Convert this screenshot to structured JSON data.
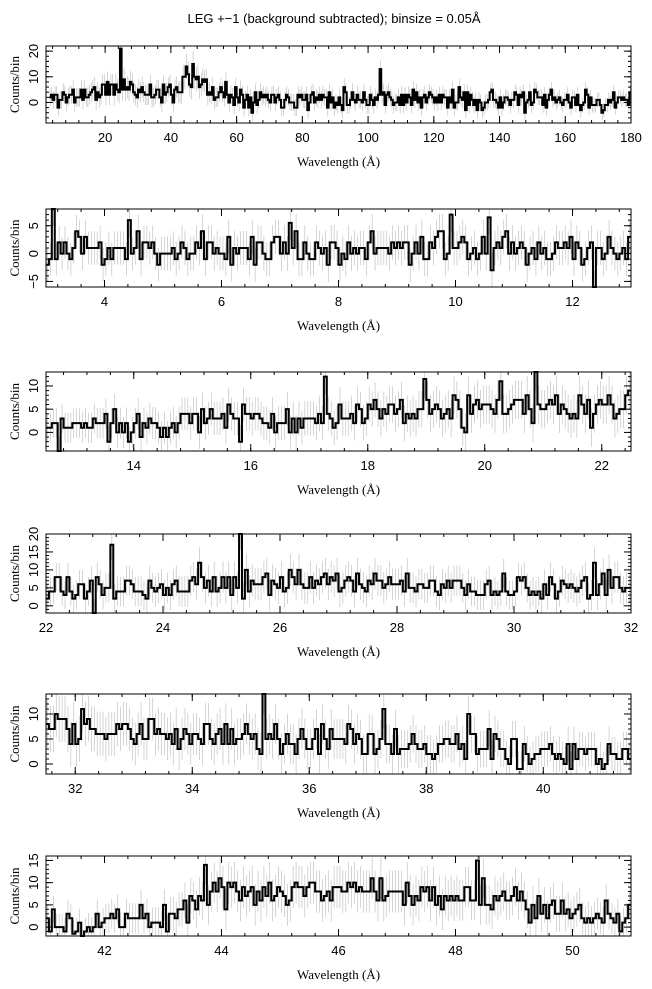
{
  "figure": {
    "title": "LEG +−1 (background subtracted); binsize = 0.05Å",
    "colors": {
      "line": "#000000",
      "error_bars": "#b8b8b8",
      "frame": "#000000"
    }
  },
  "chart_data": [
    {
      "type": "line",
      "style": "step-histogram-with-error-bars",
      "xlabel": "Wavelength (Å)",
      "ylabel": "Counts/bin",
      "xlim": [
        2,
        180
      ],
      "ylim": [
        -8,
        22
      ],
      "xticks": [
        20,
        40,
        60,
        80,
        100,
        120,
        140,
        160,
        180
      ],
      "yticks": [
        0,
        10,
        20
      ],
      "x_minor": 5,
      "y_minor": 5,
      "grid": false,
      "series": [
        {
          "x_range": [
            3,
            180
          ],
          "bin": 0.5,
          "level_profile": [
            [
              3,
              1.5
            ],
            [
              10,
              2.5
            ],
            [
              22,
              5
            ],
            [
              26,
              6.5
            ],
            [
              30,
              5
            ],
            [
              38,
              3
            ],
            [
              42,
              5
            ],
            [
              45,
              10
            ],
            [
              49,
              8
            ],
            [
              52,
              3.5
            ],
            [
              58,
              3
            ],
            [
              65,
              2
            ],
            [
              80,
              1.5
            ],
            [
              100,
              2
            ],
            [
              120,
              1.2
            ],
            [
              140,
              1
            ],
            [
              160,
              0.6
            ],
            [
              175,
              0
            ],
            [
              180,
              0
            ]
          ],
          "spread": 3,
          "seed": 11
        }
      ],
      "features": [
        {
          "x": 25,
          "y": 21
        },
        {
          "x": 45,
          "y": 14
        },
        {
          "x": 47,
          "y": 15
        },
        {
          "x": 57,
          "y": 8
        },
        {
          "x": 104,
          "y": 13
        },
        {
          "x": 176,
          "y": 0
        }
      ]
    },
    {
      "type": "line",
      "style": "step-histogram-with-error-bars",
      "xlabel": "Wavelength (Å)",
      "ylabel": "Counts/bin",
      "xlim": [
        3,
        13
      ],
      "ylim": [
        -6,
        8
      ],
      "xticks": [
        4,
        6,
        8,
        10,
        12
      ],
      "yticks": [
        -5,
        0,
        5
      ],
      "x_minor": 5,
      "y_minor": 5,
      "grid": false,
      "series": [
        {
          "x_range": [
            3,
            13
          ],
          "bin": 0.05,
          "level_profile": [
            [
              3,
              0.5
            ],
            [
              8,
              1
            ],
            [
              13,
              0.8
            ]
          ],
          "spread": 2.3,
          "seed": 23
        }
      ],
      "features": [
        {
          "x": 3.1,
          "y": 8
        },
        {
          "x": 4.45,
          "y": 6
        },
        {
          "x": 7.2,
          "y": 5.5
        },
        {
          "x": 9.95,
          "y": 7
        },
        {
          "x": 10.6,
          "y": 6.5
        },
        {
          "x": 12.4,
          "y": -6
        }
      ]
    },
    {
      "type": "line",
      "style": "step-histogram-with-error-bars",
      "xlabel": "Wavelength (Å)",
      "ylabel": "Counts/bin",
      "xlim": [
        12.5,
        22.5
      ],
      "ylim": [
        -4,
        13
      ],
      "xticks": [
        14,
        16,
        18,
        20,
        22
      ],
      "yticks": [
        0,
        5,
        10
      ],
      "x_minor": 5,
      "y_minor": 5,
      "grid": false,
      "series": [
        {
          "x_range": [
            12.5,
            22.5
          ],
          "bin": 0.05,
          "level_profile": [
            [
              12.5,
              1
            ],
            [
              15,
              2.5
            ],
            [
              18,
              3.5
            ],
            [
              20,
              5
            ],
            [
              22.5,
              5
            ]
          ],
          "spread": 2.6,
          "seed": 37
        }
      ],
      "features": [
        {
          "x": 12.75,
          "y": -4
        },
        {
          "x": 17.25,
          "y": 12
        },
        {
          "x": 18.95,
          "y": 11.5
        },
        {
          "x": 20.25,
          "y": 11
        },
        {
          "x": 20.85,
          "y": 13
        },
        {
          "x": 22.1,
          "y": 8
        }
      ]
    },
    {
      "type": "line",
      "style": "step-histogram-with-error-bars",
      "xlabel": "Wavelength (Å)",
      "ylabel": "Counts/bin",
      "xlim": [
        22,
        32
      ],
      "ylim": [
        -2,
        20
      ],
      "xticks": [
        22,
        24,
        26,
        28,
        30,
        32
      ],
      "yticks": [
        0,
        5,
        10,
        15,
        20
      ],
      "x_minor": 5,
      "y_minor": 5,
      "grid": false,
      "series": [
        {
          "x_range": [
            22,
            32
          ],
          "bin": 0.05,
          "level_profile": [
            [
              22,
              4
            ],
            [
              24,
              5.5
            ],
            [
              26,
              7
            ],
            [
              28,
              6
            ],
            [
              30,
              4.5
            ],
            [
              32,
              6.5
            ]
          ],
          "spread": 2.5,
          "seed": 53
        }
      ],
      "features": [
        {
          "x": 22.8,
          "y": -2
        },
        {
          "x": 23.1,
          "y": 17
        },
        {
          "x": 24.6,
          "y": 12
        },
        {
          "x": 25.3,
          "y": 20
        },
        {
          "x": 31.35,
          "y": 12
        }
      ]
    },
    {
      "type": "line",
      "style": "step-histogram-with-error-bars",
      "xlabel": "Wavelength (Å)",
      "ylabel": "Counts/bin",
      "xlim": [
        31.5,
        41.5
      ],
      "ylim": [
        -2,
        14
      ],
      "xticks": [
        32,
        34,
        36,
        38,
        40
      ],
      "yticks": [
        0,
        5,
        10
      ],
      "x_minor": 5,
      "y_minor": 5,
      "grid": false,
      "series": [
        {
          "x_range": [
            31.5,
            41.5
          ],
          "bin": 0.05,
          "level_profile": [
            [
              31.5,
              8
            ],
            [
              33,
              6
            ],
            [
              35,
              5
            ],
            [
              37,
              4
            ],
            [
              39,
              3
            ],
            [
              41.5,
              2
            ]
          ],
          "spread": 2.4,
          "seed": 71
        }
      ],
      "features": [
        {
          "x": 32.1,
          "y": 11
        },
        {
          "x": 35.2,
          "y": 14
        },
        {
          "x": 37.3,
          "y": 11
        },
        {
          "x": 38.7,
          "y": 10
        },
        {
          "x": 39.6,
          "y": -1
        }
      ]
    },
    {
      "type": "line",
      "style": "step-histogram-with-error-bars",
      "xlabel": "Wavelength (Å)",
      "ylabel": "Counts/bin",
      "xlim": [
        41,
        51
      ],
      "ylim": [
        -2,
        16
      ],
      "xticks": [
        42,
        44,
        46,
        48,
        50
      ],
      "yticks": [
        0,
        5,
        10,
        15
      ],
      "x_minor": 5,
      "y_minor": 5,
      "grid": false,
      "series": [
        {
          "x_range": [
            41,
            51
          ],
          "bin": 0.05,
          "level_profile": [
            [
              41,
              0.5
            ],
            [
              43,
              2.5
            ],
            [
              44,
              8
            ],
            [
              46,
              8.5
            ],
            [
              48,
              7.5
            ],
            [
              50,
              4
            ],
            [
              51,
              1.5
            ]
          ],
          "spread": 2.6,
          "seed": 89
        }
      ],
      "features": [
        {
          "x": 41.5,
          "y": -1.5
        },
        {
          "x": 43.75,
          "y": 14
        },
        {
          "x": 48.35,
          "y": 15
        },
        {
          "x": 50.9,
          "y": 1
        }
      ]
    }
  ]
}
